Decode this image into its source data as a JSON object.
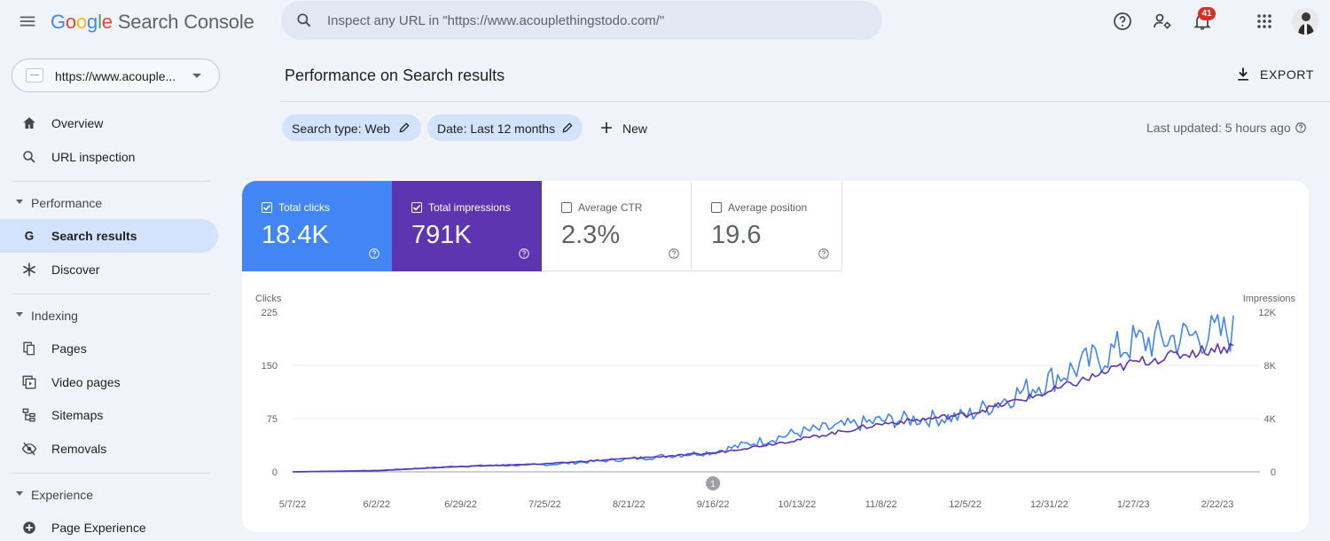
{
  "app": {
    "name_letters": [
      "G",
      "o",
      "o",
      "g",
      "l",
      "e"
    ],
    "name_rest": "Search Console"
  },
  "search": {
    "placeholder": "Inspect any URL in \"https://www.acouplethingstodo.com/\""
  },
  "topbar": {
    "notifications_count": "41"
  },
  "property": {
    "label": "https://www.acouple..."
  },
  "sidebar": {
    "overview": "Overview",
    "url_inspection": "URL inspection",
    "performance_section": "Performance",
    "search_results": "Search results",
    "discover": "Discover",
    "indexing_section": "Indexing",
    "pages": "Pages",
    "video_pages": "Video pages",
    "sitemaps": "Sitemaps",
    "removals": "Removals",
    "experience_section": "Experience",
    "page_experience": "Page Experience"
  },
  "page": {
    "title": "Performance on Search results",
    "export_label": "EXPORT",
    "filters": {
      "search_type": "Search type: Web",
      "date": "Date: Last 12 months",
      "new_label": "New"
    },
    "last_updated": "Last updated: 5 hours ago"
  },
  "metrics": {
    "clicks": {
      "label": "Total clicks",
      "value": "18.4K",
      "checked": true
    },
    "impressions": {
      "label": "Total impressions",
      "value": "791K",
      "checked": true
    },
    "ctr": {
      "label": "Average CTR",
      "value": "2.3%",
      "checked": false
    },
    "position": {
      "label": "Average position",
      "value": "19.6",
      "checked": false
    }
  },
  "colors": {
    "clicks": "#4285f4",
    "impressions": "#5e35b1",
    "accent_active": "#d3e3fd"
  },
  "chart_data": {
    "type": "line",
    "left_axis_title": "Clicks",
    "right_axis_title": "Impressions",
    "left_ticks": [
      "225",
      "150",
      "75",
      "0"
    ],
    "right_ticks": [
      "12K",
      "8K",
      "4K",
      "0"
    ],
    "ylim_left": [
      0,
      225
    ],
    "ylim_right": [
      0,
      12000
    ],
    "x_ticks": [
      "5/7/22",
      "6/2/22",
      "6/29/22",
      "7/25/22",
      "8/21/22",
      "9/16/22",
      "10/13/22",
      "11/8/22",
      "12/5/22",
      "12/31/22",
      "1/27/23",
      "2/22/23"
    ],
    "annotation": "1",
    "annotation_date": "9/16/22",
    "series": [
      {
        "name": "Clicks",
        "axis": "left",
        "approx_values_per_tick": [
          0,
          2,
          8,
          10,
          18,
          28,
          55,
          72,
          78,
          130,
          182,
          195
        ]
      },
      {
        "name": "Impressions",
        "axis": "right",
        "approx_values_per_tick": [
          0,
          80,
          400,
          600,
          1000,
          1400,
          2400,
          3600,
          4300,
          6000,
          8200,
          9300
        ]
      }
    ]
  }
}
